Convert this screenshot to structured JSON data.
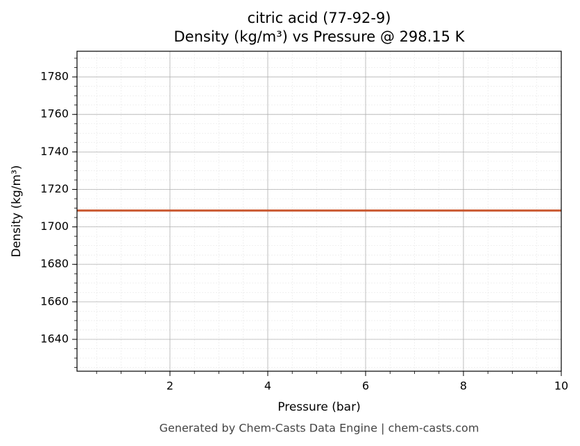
{
  "chart_data": {
    "type": "line",
    "title": "citric acid (77-92-9)",
    "subtitle": "Density (kg/m³) vs Pressure @ 298.15 K",
    "x_label": "Pressure (bar)",
    "y_label": "Density (kg/m³)",
    "footer": "Generated by Chem-Casts Data Engine | chem-casts.com",
    "x": [
      0.1,
      10
    ],
    "series": [
      {
        "name": "Density",
        "color": "#c8532a",
        "values": [
          1708.7,
          1708.7
        ]
      }
    ],
    "xlim": [
      0.1,
      10
    ],
    "xticks": [
      2,
      4,
      6,
      8,
      10
    ],
    "ylim": [
      1623,
      1793.7
    ],
    "yticks": [
      1640,
      1660,
      1680,
      1700,
      1720,
      1740,
      1760,
      1780
    ],
    "grid": true,
    "minor_grid": true
  }
}
